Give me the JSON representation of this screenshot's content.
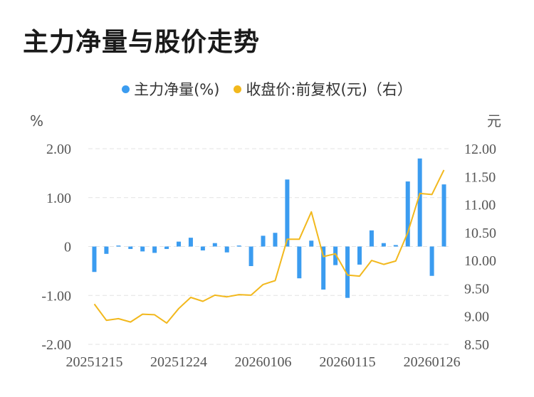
{
  "title": "主力净量与股价走势",
  "legend": [
    {
      "label": "主力净量(%)",
      "color": "#3b9cf0"
    },
    {
      "label": "收盘价:前复权(元)（右）",
      "color": "#f2b81d"
    }
  ],
  "chart_data": {
    "type": "bar+line",
    "left_unit": "%",
    "right_unit": "元",
    "left_ylim": [
      -2,
      2
    ],
    "right_ylim": [
      8.5,
      12
    ],
    "left_ticks": [
      "2.00",
      "1.00",
      "0",
      "-1.00",
      "-2.00"
    ],
    "right_ticks": [
      "12.00",
      "11.50",
      "11.00",
      "10.50",
      "10.00",
      "9.50",
      "9.00",
      "8.50"
    ],
    "x_tick_labels": [
      "20251215",
      "20251224",
      "20260106",
      "20260115",
      "20260126"
    ],
    "x_tick_indices": [
      0,
      7,
      14,
      21,
      28
    ],
    "grid": true,
    "series": [
      {
        "name": "主力净量(%)",
        "type": "bar",
        "color": "#3b9cf0",
        "values": [
          -0.52,
          -0.15,
          0.02,
          -0.05,
          -0.1,
          -0.13,
          -0.05,
          0.1,
          0.18,
          -0.08,
          0.07,
          -0.12,
          0.02,
          -0.4,
          0.22,
          0.28,
          1.37,
          -0.65,
          0.12,
          -0.88,
          -0.38,
          -1.05,
          -0.37,
          0.33,
          0.07,
          0.03,
          1.33,
          1.8,
          -0.6,
          1.27
        ]
      },
      {
        "name": "收盘价:前复权(元)（右）",
        "type": "line",
        "color": "#f2b81d",
        "values": [
          9.22,
          8.93,
          8.96,
          8.9,
          9.04,
          9.03,
          8.88,
          9.14,
          9.34,
          9.27,
          9.38,
          9.35,
          9.39,
          9.38,
          9.57,
          9.64,
          10.38,
          10.38,
          10.87,
          10.07,
          10.12,
          9.74,
          9.72,
          10.0,
          9.93,
          9.99,
          10.5,
          11.2,
          11.18,
          11.62
        ]
      }
    ]
  }
}
